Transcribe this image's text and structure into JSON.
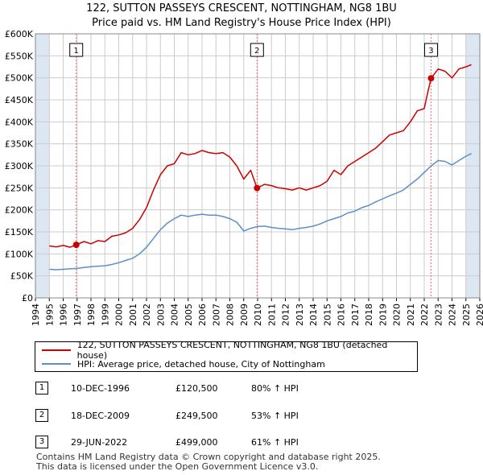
{
  "title_line1": "122, SUTTON PASSEYS CRESCENT, NOTTINGHAM, NG8 1BU",
  "title_line2": "Price paid vs. HM Land Registry's House Price Index (HPI)",
  "colors": {
    "property": "#cc0000",
    "hpi": "#5b8fc9",
    "shade": "#dde6f3",
    "grid": "#cccccc",
    "marker_line": "#ff6666"
  },
  "chart_data": {
    "type": "line",
    "title": "Price paid vs. HM Land Registry's House Price Index (HPI)",
    "xlabel": "",
    "ylabel": "",
    "xlim": [
      1994,
      2026
    ],
    "ylim": [
      0,
      600000
    ],
    "x_ticks": [
      "1994",
      "1995",
      "1996",
      "1997",
      "1998",
      "1999",
      "2000",
      "2001",
      "2002",
      "2003",
      "2004",
      "2005",
      "2006",
      "2007",
      "2008",
      "2009",
      "2010",
      "2011",
      "2012",
      "2013",
      "2014",
      "2015",
      "2016",
      "2017",
      "2018",
      "2019",
      "2020",
      "2021",
      "2022",
      "2023",
      "2024",
      "2025",
      "2026"
    ],
    "y_ticks": [
      {
        "value": 0,
        "label": "£0"
      },
      {
        "value": 50000,
        "label": "£50K"
      },
      {
        "value": 100000,
        "label": "£100K"
      },
      {
        "value": 150000,
        "label": "£150K"
      },
      {
        "value": 200000,
        "label": "£200K"
      },
      {
        "value": 250000,
        "label": "£250K"
      },
      {
        "value": 300000,
        "label": "£300K"
      },
      {
        "value": 350000,
        "label": "£350K"
      },
      {
        "value": 400000,
        "label": "£400K"
      },
      {
        "value": 450000,
        "label": "£450K"
      },
      {
        "value": 500000,
        "label": "£500K"
      },
      {
        "value": 550000,
        "label": "£550K"
      },
      {
        "value": 600000,
        "label": "£600K"
      }
    ],
    "grid": true,
    "shaded_ranges": [
      [
        1994,
        1995
      ],
      [
        2025,
        2026
      ]
    ],
    "series": [
      {
        "name": "122, SUTTON PASSEYS CRESCENT, NOTTINGHAM, NG8 1BU (detached house)",
        "color": "#cc0000",
        "x": [
          1995.0,
          1995.5,
          1996.0,
          1996.5,
          1996.94,
          1997.5,
          1998.0,
          1998.5,
          1999.0,
          1999.5,
          2000.0,
          2000.5,
          2001.0,
          2001.5,
          2002.0,
          2002.5,
          2003.0,
          2003.5,
          2004.0,
          2004.5,
          2005.0,
          2005.5,
          2006.0,
          2006.5,
          2007.0,
          2007.5,
          2008.0,
          2008.5,
          2009.0,
          2009.5,
          2009.96,
          2010.5,
          2011.0,
          2011.5,
          2012.0,
          2012.5,
          2013.0,
          2013.5,
          2014.0,
          2014.5,
          2015.0,
          2015.5,
          2016.0,
          2016.5,
          2017.0,
          2017.5,
          2018.0,
          2018.5,
          2019.0,
          2019.5,
          2020.0,
          2020.5,
          2021.0,
          2021.5,
          2022.0,
          2022.2,
          2022.49,
          2023.0,
          2023.5,
          2024.0,
          2024.5,
          2025.0,
          2025.4
        ],
        "values": [
          118000,
          116000,
          119000,
          115000,
          120500,
          128000,
          123000,
          130000,
          128000,
          140000,
          143000,
          148000,
          158000,
          178000,
          205000,
          245000,
          280000,
          300000,
          305000,
          330000,
          325000,
          328000,
          335000,
          330000,
          328000,
          330000,
          320000,
          300000,
          270000,
          290000,
          249500,
          258000,
          255000,
          250000,
          248000,
          245000,
          250000,
          245000,
          250000,
          255000,
          265000,
          290000,
          280000,
          300000,
          310000,
          320000,
          330000,
          340000,
          355000,
          370000,
          375000,
          380000,
          400000,
          425000,
          430000,
          460000,
          499000,
          520000,
          515000,
          500000,
          520000,
          525000,
          530000
        ]
      },
      {
        "name": "HPI: Average price, detached house, City of Nottingham",
        "color": "#5b8fc9",
        "x": [
          1995.0,
          1995.5,
          1996.0,
          1996.5,
          1997.0,
          1997.5,
          1998.0,
          1998.5,
          1999.0,
          1999.5,
          2000.0,
          2000.5,
          2001.0,
          2001.5,
          2002.0,
          2002.5,
          2003.0,
          2003.5,
          2004.0,
          2004.5,
          2005.0,
          2005.5,
          2006.0,
          2006.5,
          2007.0,
          2007.5,
          2008.0,
          2008.5,
          2009.0,
          2009.5,
          2010.0,
          2010.5,
          2011.0,
          2011.5,
          2012.0,
          2012.5,
          2013.0,
          2013.5,
          2014.0,
          2014.5,
          2015.0,
          2015.5,
          2016.0,
          2016.5,
          2017.0,
          2017.5,
          2018.0,
          2018.5,
          2019.0,
          2019.5,
          2020.0,
          2020.5,
          2021.0,
          2021.5,
          2022.0,
          2022.5,
          2023.0,
          2023.5,
          2024.0,
          2024.5,
          2025.0,
          2025.4
        ],
        "values": [
          65000,
          64000,
          65000,
          66000,
          67000,
          69000,
          71000,
          72000,
          73000,
          76000,
          80000,
          85000,
          90000,
          100000,
          115000,
          135000,
          155000,
          170000,
          180000,
          188000,
          185000,
          188000,
          190000,
          188000,
          188000,
          185000,
          180000,
          172000,
          152000,
          158000,
          162000,
          163000,
          160000,
          158000,
          157000,
          155000,
          158000,
          160000,
          163000,
          168000,
          175000,
          180000,
          185000,
          193000,
          197000,
          205000,
          210000,
          218000,
          225000,
          232000,
          238000,
          245000,
          258000,
          270000,
          285000,
          300000,
          312000,
          310000,
          302000,
          312000,
          322000,
          328000
        ]
      }
    ],
    "annotations": [
      {
        "label": "1",
        "x": 1996.94,
        "y": 120500
      },
      {
        "label": "2",
        "x": 2009.96,
        "y": 249500
      },
      {
        "label": "3",
        "x": 2022.49,
        "y": 499000
      }
    ]
  },
  "legend": {
    "property": "122, SUTTON PASSEYS CRESCENT, NOTTINGHAM, NG8 1BU (detached house)",
    "hpi": "HPI: Average price, detached house, City of Nottingham"
  },
  "sales": [
    {
      "num": "1",
      "date": "10-DEC-1996",
      "price": "£120,500",
      "hpi": "80% ↑ HPI"
    },
    {
      "num": "2",
      "date": "18-DEC-2009",
      "price": "£249,500",
      "hpi": "53% ↑ HPI"
    },
    {
      "num": "3",
      "date": "29-JUN-2022",
      "price": "£499,000",
      "hpi": "61% ↑ HPI"
    }
  ],
  "footer": {
    "line1": "Contains HM Land Registry data © Crown copyright and database right 2025.",
    "line2": "This data is licensed under the Open Government Licence v3.0."
  }
}
